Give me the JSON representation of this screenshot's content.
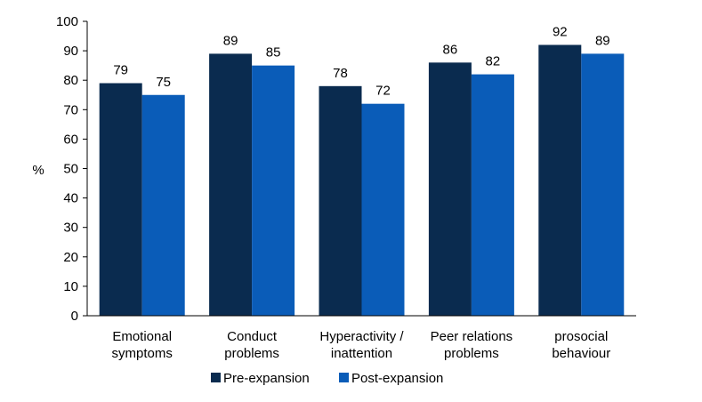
{
  "chart_data": {
    "type": "bar",
    "title": "",
    "xlabel": "",
    "ylabel": "%",
    "ylim": [
      0,
      100
    ],
    "yticks": [
      0,
      10,
      20,
      30,
      40,
      50,
      60,
      70,
      80,
      90,
      100
    ],
    "grid": false,
    "legend_position": "bottom",
    "categories": [
      [
        "Emotional",
        "symptoms"
      ],
      [
        "Conduct",
        "problems"
      ],
      [
        "Hyperactivity /",
        "inattention"
      ],
      [
        "Peer relations",
        "problems"
      ],
      [
        "prosocial",
        "behaviour"
      ]
    ],
    "series": [
      {
        "name": "Pre-expansion",
        "color": "#0a2b4f",
        "values": [
          79,
          89,
          78,
          86,
          92
        ]
      },
      {
        "name": "Post-expansion",
        "color": "#0a5cb8",
        "values": [
          75,
          85,
          72,
          82,
          89
        ]
      }
    ]
  }
}
